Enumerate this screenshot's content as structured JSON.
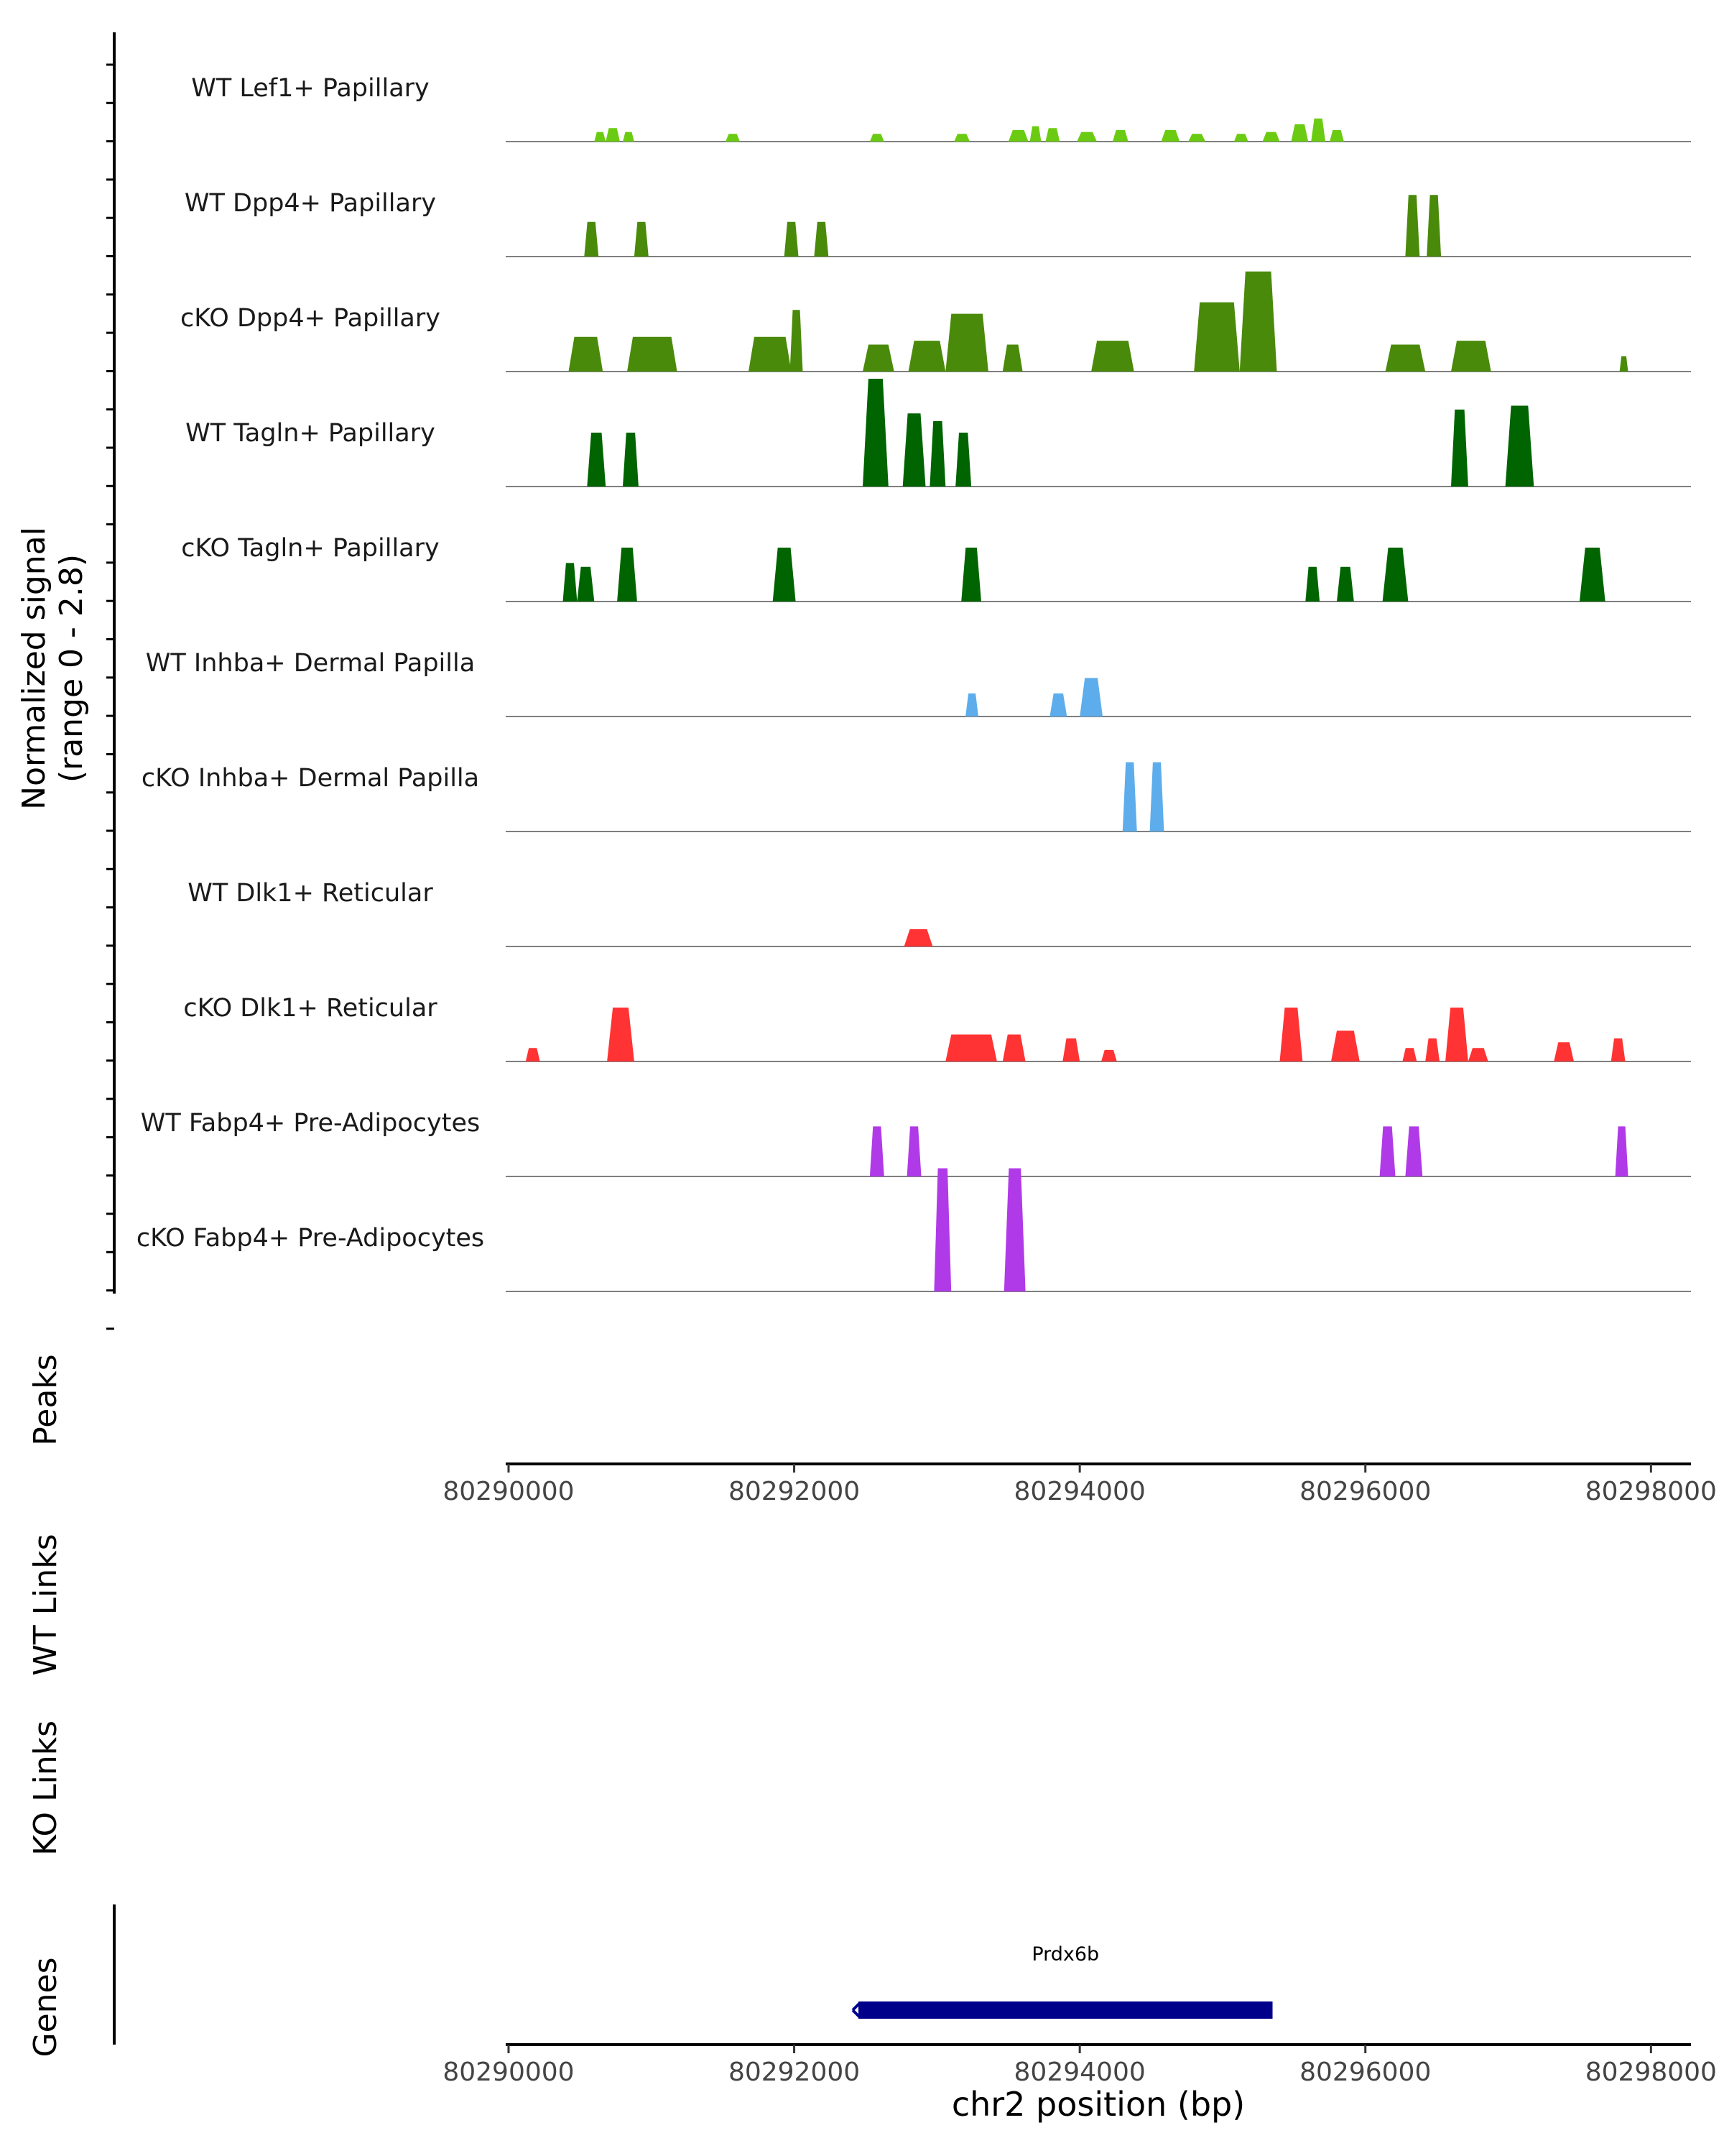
{
  "chart_data": {
    "type": "area",
    "title": "",
    "chromosome": "chr2",
    "xlabel": "chr2 position (bp)",
    "xlim": [
      80289980,
      80298280
    ],
    "xticks": [
      80290000,
      80292000,
      80294000,
      80296000,
      80298000
    ],
    "coverage": {
      "ylabel": "Normalized signal",
      "ylabel_range": "(range 0 - 2.8)",
      "ylim": [
        0,
        2.8
      ],
      "series": [
        {
          "name": "WT Lef1+ Papillary",
          "color": "#6BCB12",
          "peaks": [
            [
              80290600,
              80290680,
              0.25
            ],
            [
              80290680,
              80290780,
              0.35
            ],
            [
              80290800,
              80290880,
              0.25
            ],
            [
              80291520,
              80291620,
              0.2
            ],
            [
              80292530,
              80292630,
              0.2
            ],
            [
              80293120,
              80293230,
              0.2
            ],
            [
              80293500,
              80293640,
              0.3
            ],
            [
              80293650,
              80293730,
              0.4
            ],
            [
              80293760,
              80293860,
              0.35
            ],
            [
              80293980,
              80294120,
              0.25
            ],
            [
              80294230,
              80294340,
              0.3
            ],
            [
              80294570,
              80294700,
              0.3
            ],
            [
              80294760,
              80294880,
              0.2
            ],
            [
              80295080,
              80295180,
              0.2
            ],
            [
              80295280,
              80295400,
              0.25
            ],
            [
              80295480,
              80295600,
              0.45
            ],
            [
              80295620,
              80295720,
              0.6
            ],
            [
              80295750,
              80295850,
              0.3
            ]
          ]
        },
        {
          "name": "WT Dpp4+ Papillary",
          "color": "#4A8A0A",
          "peaks": [
            [
              80290530,
              80290630,
              0.9
            ],
            [
              80290880,
              80290980,
              0.9
            ],
            [
              80291930,
              80292030,
              0.9
            ],
            [
              80292140,
              80292240,
              0.9
            ],
            [
              80296280,
              80296380,
              1.6
            ],
            [
              80296430,
              80296530,
              1.6
            ]
          ]
        },
        {
          "name": "cKO Dpp4+ Papillary",
          "color": "#4A8A0A",
          "peaks": [
            [
              80290420,
              80290660,
              0.9
            ],
            [
              80290830,
              80291180,
              0.9
            ],
            [
              80291680,
              80291980,
              0.9
            ],
            [
              80291970,
              80292060,
              1.6
            ],
            [
              80292480,
              80292700,
              0.7
            ],
            [
              80292800,
              80293060,
              0.8
            ],
            [
              80293060,
              80293360,
              1.5
            ],
            [
              80293460,
              80293600,
              0.7
            ],
            [
              80294080,
              80294380,
              0.8
            ],
            [
              80294800,
              80295120,
              1.8
            ],
            [
              80295120,
              80295380,
              2.6
            ],
            [
              80296140,
              80296420,
              0.7
            ],
            [
              80296600,
              80296880,
              0.8
            ],
            [
              80297780,
              80297840,
              0.4
            ]
          ]
        },
        {
          "name": "WT Tagln+ Papillary",
          "color": "#006400",
          "peaks": [
            [
              80290550,
              80290680,
              1.4
            ],
            [
              80290800,
              80290910,
              1.4
            ],
            [
              80292480,
              80292660,
              2.8
            ],
            [
              80292760,
              80292920,
              1.9
            ],
            [
              80292950,
              80293060,
              1.7
            ],
            [
              80293130,
              80293240,
              1.4
            ],
            [
              80296600,
              80296720,
              2.0
            ],
            [
              80296980,
              80297180,
              2.1
            ]
          ]
        },
        {
          "name": "cKO Tagln+ Papillary",
          "color": "#006400",
          "peaks": [
            [
              80290380,
              80290480,
              1.0
            ],
            [
              80290480,
              80290600,
              0.9
            ],
            [
              80290760,
              80290900,
              1.4
            ],
            [
              80291850,
              80292010,
              1.4
            ],
            [
              80293170,
              80293310,
              1.4
            ],
            [
              80295580,
              80295680,
              0.9
            ],
            [
              80295800,
              80295920,
              0.9
            ],
            [
              80296120,
              80296300,
              1.4
            ],
            [
              80297500,
              80297680,
              1.4
            ]
          ]
        },
        {
          "name": "WT Inhba+ Dermal Papilla",
          "color": "#5DADEC",
          "peaks": [
            [
              80293200,
              80293290,
              0.6
            ],
            [
              80293790,
              80293910,
              0.6
            ],
            [
              80294000,
              80294160,
              1.0
            ]
          ]
        },
        {
          "name": "cKO Inhba+ Dermal Papilla",
          "color": "#5DADEC",
          "peaks": [
            [
              80294300,
              80294400,
              1.8
            ],
            [
              80294490,
              80294590,
              1.8
            ]
          ]
        },
        {
          "name": "WT Dlk1+ Reticular",
          "color": "#FF3333",
          "peaks": [
            [
              80292770,
              80292970,
              0.45
            ]
          ]
        },
        {
          "name": "cKO Dlk1+ Reticular",
          "color": "#FF3333",
          "peaks": [
            [
              80290120,
              80290220,
              0.35
            ],
            [
              80290690,
              80290880,
              1.4
            ],
            [
              80293060,
              80293420,
              0.7
            ],
            [
              80293460,
              80293620,
              0.7
            ],
            [
              80293880,
              80294000,
              0.6
            ],
            [
              80294150,
              80294260,
              0.3
            ],
            [
              80295400,
              80295560,
              1.4
            ],
            [
              80295760,
              80295960,
              0.8
            ],
            [
              80296260,
              80296360,
              0.35
            ],
            [
              80296420,
              80296520,
              0.6
            ],
            [
              80296560,
              80296720,
              1.4
            ],
            [
              80296720,
              80296860,
              0.35
            ],
            [
              80297320,
              80297460,
              0.5
            ],
            [
              80297720,
              80297820,
              0.6
            ]
          ]
        },
        {
          "name": "WT Fabp4+ Pre-Adipocytes",
          "color": "#B03AE8",
          "peaks": [
            [
              80292530,
              80292630,
              1.3
            ],
            [
              80292790,
              80292890,
              1.3
            ],
            [
              80296100,
              80296210,
              1.3
            ],
            [
              80296280,
              80296400,
              1.3
            ],
            [
              80297750,
              80297840,
              1.3
            ]
          ]
        },
        {
          "name": "cKO Fabp4+ Pre-Adipocytes",
          "color": "#B03AE8",
          "peaks": [
            [
              80292980,
              80293100,
              3.2
            ],
            [
              80293470,
              80293620,
              3.2
            ]
          ]
        }
      ]
    },
    "panels": [
      {
        "name": "Peaks",
        "label": "Peaks",
        "items": []
      },
      {
        "name": "WT Links",
        "label": "WT Links",
        "items": []
      },
      {
        "name": "KO Links",
        "label": "KO Links",
        "items": []
      },
      {
        "name": "Genes",
        "label": "Genes",
        "genes": [
          {
            "name": "Prdx6b",
            "start": 80292450,
            "end": 80295350,
            "strand": "-",
            "color": "#00008B"
          }
        ]
      }
    ]
  }
}
